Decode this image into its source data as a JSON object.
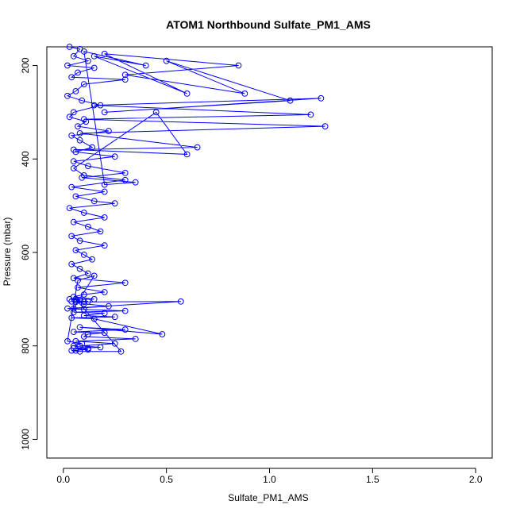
{
  "chart_data": {
    "type": "scatter",
    "title": "ATOM1 Northbound Sulfate_PM1_AMS",
    "xlabel": "Sulfate_PM1_AMS",
    "ylabel": "Pressure (mbar)",
    "xlim": [
      -0.08,
      2.08
    ],
    "ylim": [
      1040,
      160
    ],
    "y_reversed": true,
    "xticks": [
      0.0,
      0.5,
      1.0,
      1.5,
      2.0
    ],
    "xtick_labels": [
      "0.0",
      "0.5",
      "1.0",
      "1.5",
      "2.0"
    ],
    "yticks": [
      200,
      400,
      600,
      800,
      1000
    ],
    "ytick_labels": [
      "200",
      "400",
      "600",
      "800",
      "1000"
    ],
    "grid": false,
    "legend": "none",
    "series_color": "#0000ff",
    "marker": "open-circle",
    "connected_by_lines": true,
    "series": [
      {
        "x": [
          0.03,
          0.08,
          0.05,
          0.12,
          0.02,
          0.15,
          0.07,
          0.04,
          0.3,
          0.1,
          0.06,
          0.02,
          0.09,
          0.18,
          0.05,
          0.03,
          0.11,
          0.07,
          0.22,
          0.04,
          0.08,
          0.14,
          0.06,
          0.25,
          0.05,
          0.12,
          0.3,
          0.09,
          0.35,
          0.2,
          0.1,
          0.4,
          0.15,
          0.6,
          0.2,
          0.85,
          0.3,
          0.88,
          0.5,
          1.1,
          0.2,
          1.25,
          0.15,
          1.2,
          0.1,
          1.27,
          0.08,
          0.65,
          0.05,
          0.6,
          0.45,
          0.05,
          0.1,
          0.3,
          0.04,
          0.2,
          0.06,
          0.15,
          0.25,
          0.03,
          0.1,
          0.2,
          0.05,
          0.12,
          0.18,
          0.04,
          0.08,
          0.2,
          0.06,
          0.1,
          0.14,
          0.04,
          0.08,
          0.12,
          0.05,
          0.3,
          0.07,
          0.2,
          0.1,
          0.05,
          0.15,
          0.03,
          0.08,
          0.06,
          0.12,
          0.04,
          0.1,
          0.06,
          0.57,
          0.02,
          0.1,
          0.3,
          0.05,
          0.2,
          0.1,
          0.25,
          0.04,
          0.15,
          0.48,
          0.08,
          0.3,
          0.05,
          0.2,
          0.12,
          0.1,
          0.35,
          0.06,
          0.25,
          0.08,
          0.18,
          0.05,
          0.12,
          0.04,
          0.08,
          0.28,
          0.06,
          0.1,
          0.22,
          0.05,
          0.15,
          0.07,
          0.02,
          0.09,
          0.05,
          0.12,
          0.06
        ],
        "y": [
          160,
          165,
          180,
          190,
          200,
          205,
          215,
          225,
          230,
          240,
          255,
          265,
          275,
          285,
          300,
          310,
          320,
          330,
          340,
          350,
          360,
          375,
          385,
          395,
          405,
          415,
          430,
          440,
          450,
          455,
          170,
          200,
          180,
          260,
          175,
          200,
          220,
          260,
          190,
          275,
          300,
          270,
          285,
          305,
          315,
          330,
          345,
          375,
          380,
          390,
          300,
          420,
          435,
          445,
          460,
          470,
          480,
          490,
          495,
          505,
          515,
          525,
          535,
          545,
          555,
          565,
          575,
          585,
          595,
          605,
          615,
          625,
          635,
          645,
          655,
          665,
          675,
          685,
          690,
          695,
          700,
          700,
          702,
          703,
          705,
          705,
          706,
          706,
          705,
          720,
          722,
          725,
          728,
          730,
          735,
          738,
          740,
          742,
          775,
          760,
          765,
          770,
          772,
          775,
          780,
          785,
          790,
          795,
          800,
          803,
          805,
          808,
          810,
          812,
          812,
          700,
          710,
          715,
          720,
          650,
          660,
          790,
          795,
          800,
          805,
          810
        ]
      }
    ]
  }
}
